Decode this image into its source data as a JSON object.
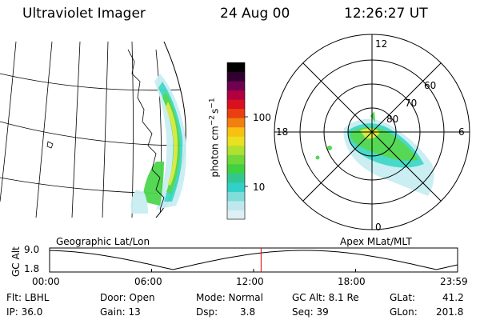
{
  "header": {
    "title": "Ultraviolet Imager",
    "date": "24 Aug 00",
    "time": "12:26:27 UT"
  },
  "colors": {
    "aurora_low": "#c8eef2",
    "aurora_mid": "#3fd8c8",
    "aurora_green": "#4cd64c",
    "aurora_yellow": "#d8e83a",
    "colorbar": [
      "#dff0f4",
      "#bfe8ee",
      "#7fdcd8",
      "#30d0c8",
      "#30c890",
      "#40d040",
      "#70d838",
      "#b0e030",
      "#e8e020",
      "#f8c010",
      "#f08010",
      "#e84010",
      "#d81020",
      "#b00040",
      "#700050",
      "#300030",
      "#000000"
    ]
  },
  "colorbar": {
    "label": "photon cm",
    "label_exp1": "−2",
    "label_mid": "s",
    "label_exp2": "−1",
    "tick_100": "100",
    "tick_10": "10"
  },
  "polar": {
    "mlt_12": "12",
    "mlt_18": "18",
    "mlt_6": "6",
    "mlt_0": "0",
    "lat_60": "60",
    "lat_70": "70",
    "lat_80": "80"
  },
  "panel_labels": {
    "left": "Geographic Lat/Lon",
    "right": "Apex MLat/MLT"
  },
  "altitude_plot": {
    "ylabel": "GC Alt",
    "y_top": "9.0",
    "y_bottom": "1.8",
    "x_ticks": [
      "00:00",
      "06:00",
      "12:00",
      "18:00",
      "23:59"
    ],
    "current_hour": 12.44
  },
  "footer": {
    "flt": "Flt: LBHL",
    "ip": "IP: 36.0",
    "door": "Door: Open",
    "gain": "Gain: 13",
    "mode": "Mode: Normal",
    "dsp_label": "Dsp:",
    "dsp_value": "3.8",
    "gcalt": "GC Alt: 8.1 Re",
    "seq": "Seq: 39",
    "glat_label": "GLat:",
    "glat_value": "41.2",
    "glon_label": "GLon:",
    "glon_value": "201.8"
  }
}
